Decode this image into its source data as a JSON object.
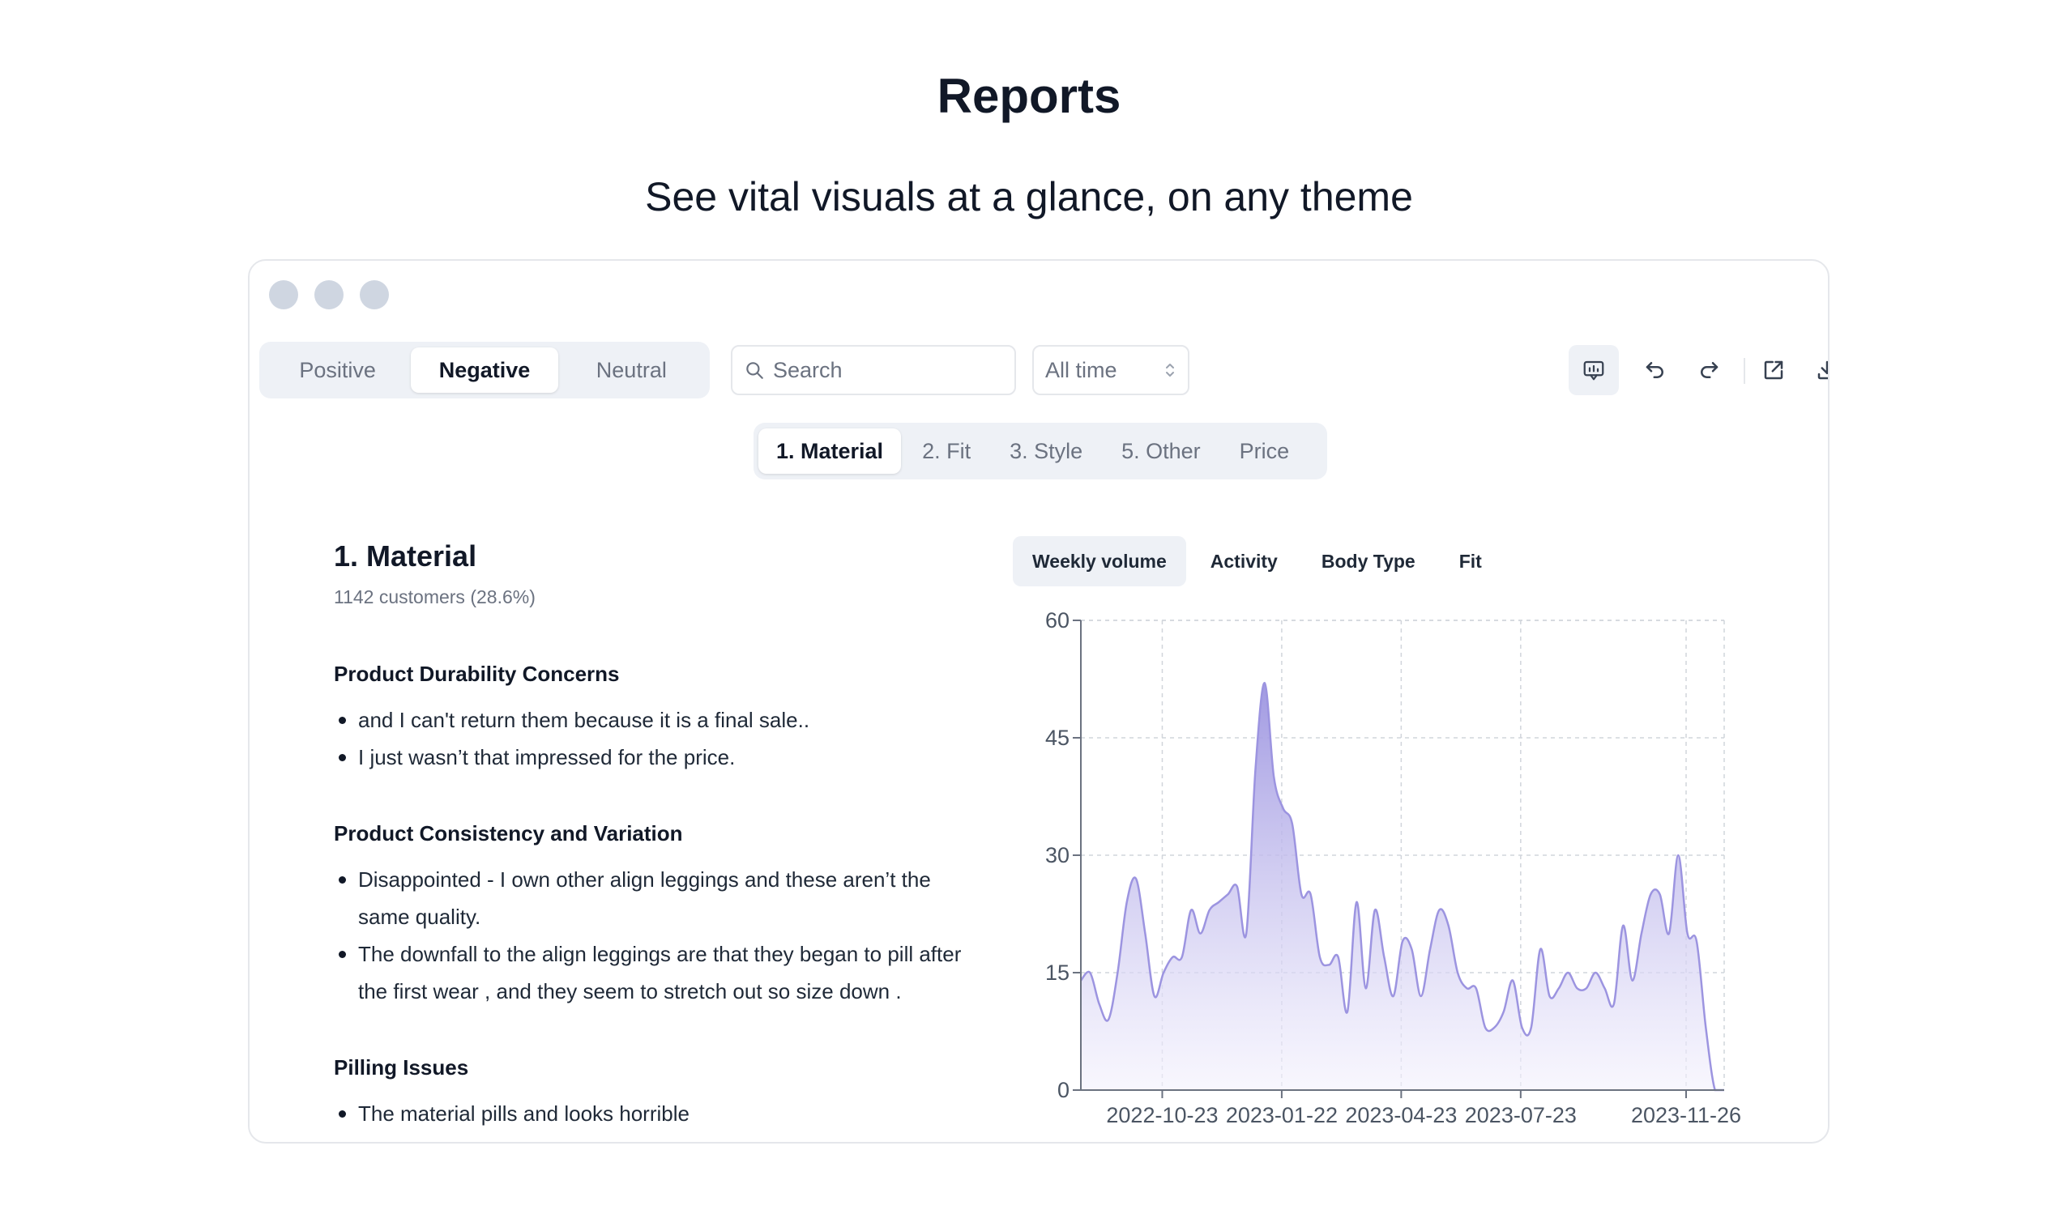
{
  "header": {
    "title": "Reports",
    "subtitle": "See vital visuals at a glance, on any theme"
  },
  "toolbar": {
    "sentiment_tabs": [
      "Positive",
      "Negative",
      "Neutral"
    ],
    "sentiment_active": "Negative",
    "search_placeholder": "Search",
    "time_range": "All time",
    "actions": [
      "feedback-icon",
      "undo-icon",
      "redo-icon",
      "external-link-icon",
      "download-icon"
    ]
  },
  "topics": {
    "tabs": [
      "1. Material",
      "2. Fit",
      "3. Style",
      "5. Other",
      "Price"
    ],
    "active": "1. Material"
  },
  "section": {
    "title": "1. Material",
    "meta": "1142 customers (28.6%)",
    "groups": [
      {
        "title": "Product Durability Concerns",
        "items": [
          "and I can't return them because it is a final sale..",
          "I just wasn’t that impressed for the price."
        ]
      },
      {
        "title": "Product Consistency and Variation",
        "items": [
          "Disappointed - I own other align leggings and these aren’t the same quality.",
          "The downfall to the align leggings are that they began to pill after the first wear , and they seem to stretch out so size down ."
        ]
      },
      {
        "title": "Pilling Issues",
        "items": [
          "The material pills and looks horrible"
        ]
      }
    ]
  },
  "chart_tabs": {
    "tabs": [
      "Weekly volume",
      "Activity",
      "Body Type",
      "Fit"
    ],
    "active": "Weekly volume"
  },
  "colors": {
    "accent": "#9c94e0",
    "accent_light": "#f3f1fd"
  },
  "chart_data": {
    "type": "area",
    "title": "",
    "xlabel": "",
    "ylabel": "",
    "ylim": [
      0,
      60
    ],
    "yticks": [
      0,
      15,
      30,
      45,
      60
    ],
    "xticks": [
      "2022-10-23",
      "2023-01-22",
      "2023-04-23",
      "2023-07-23",
      "2023-11-26"
    ],
    "grid": true,
    "x_range": [
      "2022-08-22",
      "2023-12-25"
    ],
    "series": [
      {
        "x": [
          "2022-08-22",
          "2022-08-29",
          "2022-09-05",
          "2022-09-12",
          "2022-09-19",
          "2022-09-26",
          "2022-10-03",
          "2022-10-10",
          "2022-10-17",
          "2022-10-24",
          "2022-10-31",
          "2022-11-07",
          "2022-11-14",
          "2022-11-21",
          "2022-11-28",
          "2022-12-05",
          "2022-12-12",
          "2022-12-19",
          "2022-12-26",
          "2023-01-02",
          "2023-01-09",
          "2023-01-16",
          "2023-01-23",
          "2023-01-30",
          "2023-02-06",
          "2023-02-13",
          "2023-02-20",
          "2023-02-27",
          "2023-03-06",
          "2023-03-13",
          "2023-03-20",
          "2023-03-27",
          "2023-04-03",
          "2023-04-10",
          "2023-04-17",
          "2023-04-24",
          "2023-05-01",
          "2023-05-08",
          "2023-05-15",
          "2023-05-22",
          "2023-05-29",
          "2023-06-05",
          "2023-06-12",
          "2023-06-19",
          "2023-06-26",
          "2023-07-03",
          "2023-07-10",
          "2023-07-17",
          "2023-07-24",
          "2023-07-31",
          "2023-08-07",
          "2023-08-14",
          "2023-08-21",
          "2023-08-28",
          "2023-09-04",
          "2023-09-11",
          "2023-09-18",
          "2023-09-25",
          "2023-10-02",
          "2023-10-09",
          "2023-10-16",
          "2023-10-23",
          "2023-10-30",
          "2023-11-06",
          "2023-11-13",
          "2023-11-20",
          "2023-11-27",
          "2023-12-04",
          "2023-12-11",
          "2023-12-18",
          "2023-12-25"
        ],
        "values": [
          14,
          15,
          11,
          9,
          15,
          24,
          27,
          20,
          12,
          15,
          17,
          17,
          23,
          20,
          23,
          24,
          25,
          26,
          20,
          41,
          52,
          40,
          36,
          34,
          25,
          25,
          17,
          16,
          17,
          10,
          24,
          13,
          23,
          17,
          12,
          19,
          18,
          12,
          18,
          23,
          21,
          15,
          13,
          13,
          8,
          8,
          10,
          14,
          8,
          8,
          18,
          12,
          13,
          15,
          13,
          13,
          15,
          13,
          11,
          21,
          14,
          20,
          25,
          25,
          20,
          30,
          20,
          19,
          8,
          0,
          0
        ]
      }
    ]
  }
}
